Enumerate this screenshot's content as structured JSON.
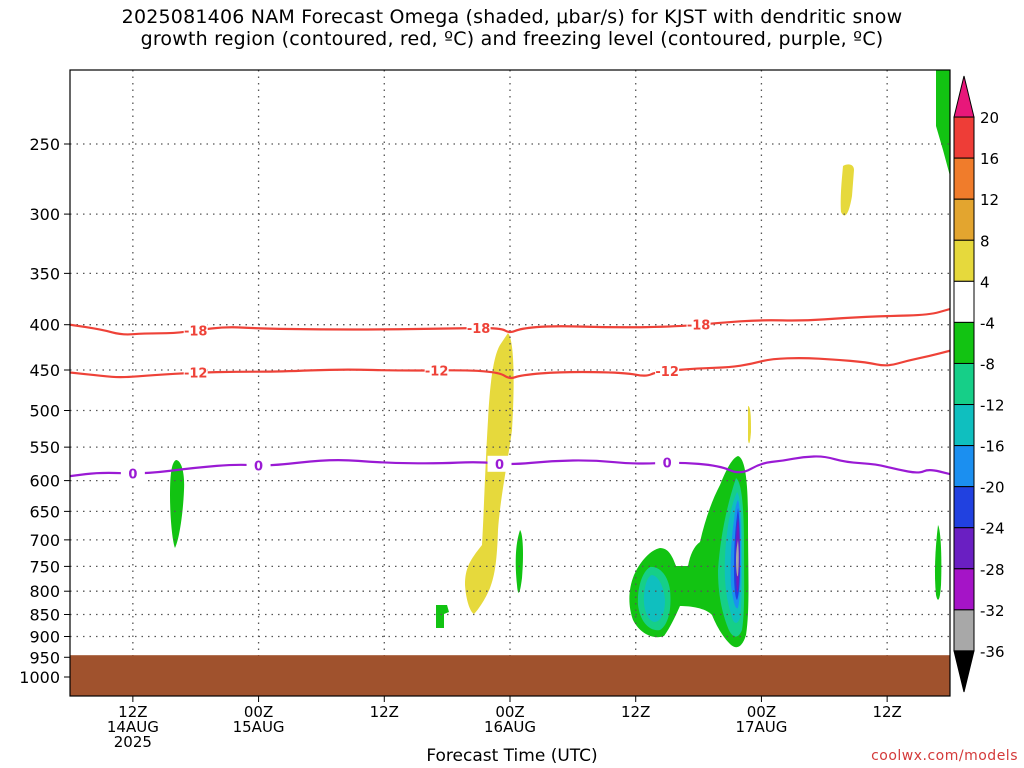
{
  "title": {
    "line1": "2025081406 NAM Forecast Omega (shaded, μbar/s) for KJST with dendritic snow",
    "line2": "growth region (contoured, red, ºC) and freezing level (contoured, purple, ºC)"
  },
  "watermark": "coolwx.com/models",
  "chart_data": {
    "type": "time-height",
    "xlabel": "Forecast Time (UTC)",
    "x_tick_labels": [
      {
        "hour": 6,
        "lines": [
          "12Z",
          "14AUG",
          "2025"
        ]
      },
      {
        "hour": 18,
        "lines": [
          "00Z",
          "15AUG"
        ]
      },
      {
        "hour": 30,
        "lines": [
          "12Z"
        ]
      },
      {
        "hour": 42,
        "lines": [
          "00Z",
          "16AUG"
        ]
      },
      {
        "hour": 54,
        "lines": [
          "12Z"
        ]
      },
      {
        "hour": 66,
        "lines": [
          "00Z",
          "17AUG"
        ]
      },
      {
        "hour": 78,
        "lines": [
          "12Z"
        ]
      }
    ],
    "x_range_hours": [
      0,
      84
    ],
    "y_ticks": [
      250,
      300,
      350,
      400,
      450,
      500,
      550,
      600,
      650,
      700,
      750,
      800,
      850,
      900,
      950,
      1000
    ],
    "y_range_hPa": [
      1050,
      200
    ],
    "y_scale": "log",
    "grid": true,
    "colorbar": {
      "labels": [
        "20",
        "16",
        "12",
        "8",
        "4",
        "-4",
        "-8",
        "-12",
        "-16",
        "-20",
        "-24",
        "-28",
        "-32",
        "-36"
      ],
      "colors": [
        "#e8177a",
        "#ee3d37",
        "#f07c2b",
        "#e3a52f",
        "#e6d93c",
        "#ffffff",
        "#12c312",
        "#16cf88",
        "#0fbfbf",
        "#1b8ff0",
        "#2141e0",
        "#6a1fc2",
        "#a514c7",
        "#a8a8a8",
        "#000000"
      ]
    },
    "series": [
      {
        "name": "-18",
        "color": "#ee4238",
        "points": [
          [
            0,
            400
          ],
          [
            3,
            405
          ],
          [
            5,
            411
          ],
          [
            7,
            409
          ],
          [
            10,
            409
          ],
          [
            12,
            406
          ],
          [
            15,
            402
          ],
          [
            18,
            404
          ],
          [
            24,
            405
          ],
          [
            30,
            405
          ],
          [
            36,
            404
          ],
          [
            41,
            403
          ],
          [
            42,
            409
          ],
          [
            43,
            404
          ],
          [
            46,
            401
          ],
          [
            52,
            403
          ],
          [
            58,
            402
          ],
          [
            62,
            398
          ],
          [
            66,
            395
          ],
          [
            70,
            396
          ],
          [
            74,
            393
          ],
          [
            78,
            391
          ],
          [
            82,
            390
          ],
          [
            84,
            384
          ]
        ]
      },
      {
        "name": "-12",
        "color": "#ee4238",
        "points": [
          [
            0,
            453
          ],
          [
            3,
            457
          ],
          [
            5,
            459
          ],
          [
            8,
            456
          ],
          [
            12,
            453
          ],
          [
            16,
            452
          ],
          [
            20,
            452
          ],
          [
            26,
            449
          ],
          [
            32,
            451
          ],
          [
            38,
            450
          ],
          [
            41,
            453
          ],
          [
            42,
            461
          ],
          [
            43,
            456
          ],
          [
            47,
            452
          ],
          [
            53,
            453
          ],
          [
            55,
            458
          ],
          [
            56,
            452
          ],
          [
            60,
            448
          ],
          [
            63,
            447
          ],
          [
            65,
            443
          ],
          [
            67,
            437
          ],
          [
            70,
            436
          ],
          [
            73,
            438
          ],
          [
            76,
            441
          ],
          [
            78,
            446
          ],
          [
            80,
            439
          ],
          [
            82,
            434
          ],
          [
            84,
            428
          ]
        ]
      },
      {
        "name": "0",
        "color": "#9a1ad4",
        "points": [
          [
            0,
            593
          ],
          [
            3,
            587
          ],
          [
            7,
            590
          ],
          [
            12,
            580
          ],
          [
            16,
            575
          ],
          [
            19,
            578
          ],
          [
            25,
            567
          ],
          [
            30,
            573
          ],
          [
            35,
            574
          ],
          [
            39,
            571
          ],
          [
            42,
            576
          ],
          [
            46,
            570
          ],
          [
            50,
            569
          ],
          [
            54,
            575
          ],
          [
            58,
            572
          ],
          [
            62,
            577
          ],
          [
            64,
            591
          ],
          [
            66,
            573
          ],
          [
            68,
            570
          ],
          [
            70,
            564
          ],
          [
            72,
            563
          ],
          [
            74,
            572
          ],
          [
            77,
            575
          ],
          [
            79,
            583
          ],
          [
            81,
            589
          ],
          [
            82,
            582
          ],
          [
            84,
            590
          ]
        ]
      }
    ],
    "surface_hPa": 945
  }
}
